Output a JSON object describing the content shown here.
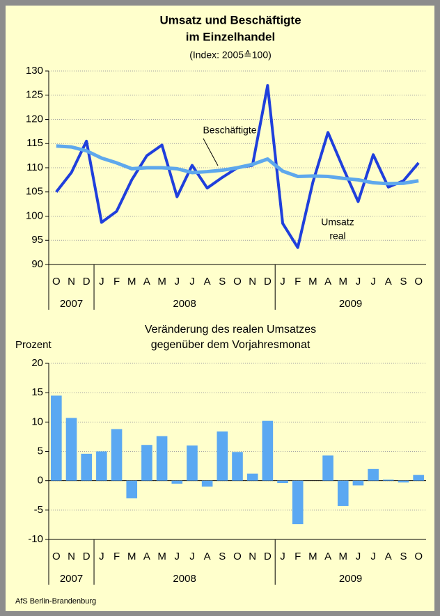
{
  "chart_data": [
    {
      "type": "line",
      "title": [
        "Umsatz und Beschäftigte",
        "im Einzelhandel"
      ],
      "subtitle": "(Index: 2005≙100)",
      "categories": [
        "O",
        "N",
        "D",
        "J",
        "F",
        "M",
        "A",
        "M",
        "J",
        "J",
        "A",
        "S",
        "O",
        "N",
        "D",
        "J",
        "F",
        "M",
        "A",
        "M",
        "J",
        "J",
        "A",
        "S",
        "O"
      ],
      "groups": [
        {
          "label": "2007",
          "count": 3
        },
        {
          "label": "2008",
          "count": 12
        },
        {
          "label": "2009",
          "count": 10
        }
      ],
      "series": [
        {
          "name": "Umsatz real",
          "color": "#1f3fdc",
          "values": [
            105,
            109,
            115.5,
            98.7,
            101,
            107.5,
            112.5,
            114.7,
            104,
            110.5,
            105.8,
            108,
            110,
            110.5,
            127,
            98.5,
            93.5,
            107,
            117.3,
            110,
            103,
            112.7,
            106,
            107.3,
            111
          ]
        },
        {
          "name": "Beschäftigte",
          "color": "#5ea8ec",
          "values": [
            114.5,
            114.3,
            113.5,
            112,
            111,
            109.8,
            110,
            110,
            109.8,
            109,
            109.2,
            109.5,
            110,
            110.7,
            111.8,
            109.3,
            108.2,
            108.3,
            108.2,
            107.8,
            107.5,
            106.9,
            106.7,
            106.8,
            107.3
          ]
        }
      ],
      "annotations": [
        "Beschäftigte",
        "Umsatz",
        "real"
      ],
      "ylim": [
        90,
        130
      ],
      "yticks": [
        90,
        95,
        100,
        105,
        110,
        115,
        120,
        125,
        130
      ],
      "grid": true
    },
    {
      "type": "bar",
      "title": [
        "Veränderung des realen Umsatzes",
        "gegenüber dem Vorjahresmonat"
      ],
      "ylabel": "Prozent",
      "categories": [
        "O",
        "N",
        "D",
        "J",
        "F",
        "M",
        "A",
        "M",
        "J",
        "J",
        "A",
        "S",
        "O",
        "N",
        "D",
        "J",
        "F",
        "M",
        "A",
        "M",
        "J",
        "J",
        "A",
        "S",
        "O"
      ],
      "groups": [
        {
          "label": "2007",
          "count": 3
        },
        {
          "label": "2008",
          "count": 12
        },
        {
          "label": "2009",
          "count": 10
        }
      ],
      "values": [
        14.5,
        10.7,
        4.6,
        5,
        8.8,
        -3,
        6.1,
        7.6,
        -0.5,
        6,
        -1,
        8.4,
        4.9,
        1.2,
        10.2,
        -0.4,
        -7.4,
        0,
        4.3,
        -4.3,
        -0.8,
        2,
        0.2,
        -0.3,
        1
      ],
      "color": "#5aa8f2",
      "ylim": [
        -10,
        20
      ],
      "yticks": [
        -10,
        -5,
        0,
        5,
        10,
        15,
        20
      ],
      "grid": true
    }
  ],
  "source": "AfS Berlin-Brandenburg"
}
